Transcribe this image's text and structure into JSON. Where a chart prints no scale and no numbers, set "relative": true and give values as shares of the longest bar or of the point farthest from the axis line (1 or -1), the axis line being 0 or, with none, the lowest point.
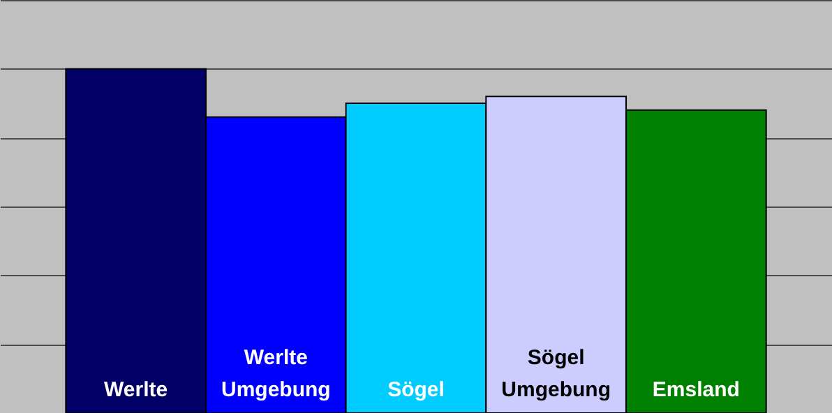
{
  "chart_data": {
    "type": "bar",
    "relative": true,
    "grid": "y",
    "data_labels": false,
    "categories": [
      "Werlte",
      "Werlte Umgebung",
      "Sögel",
      "Sögel Umgebung",
      "Emsland"
    ],
    "values": [
      1,
      0.86,
      0.9,
      0.92,
      0.88
    ],
    "colors": [
      "#000066",
      "#0000ff",
      "#00ccff",
      "#ccccff",
      "#008000"
    ]
  }
}
